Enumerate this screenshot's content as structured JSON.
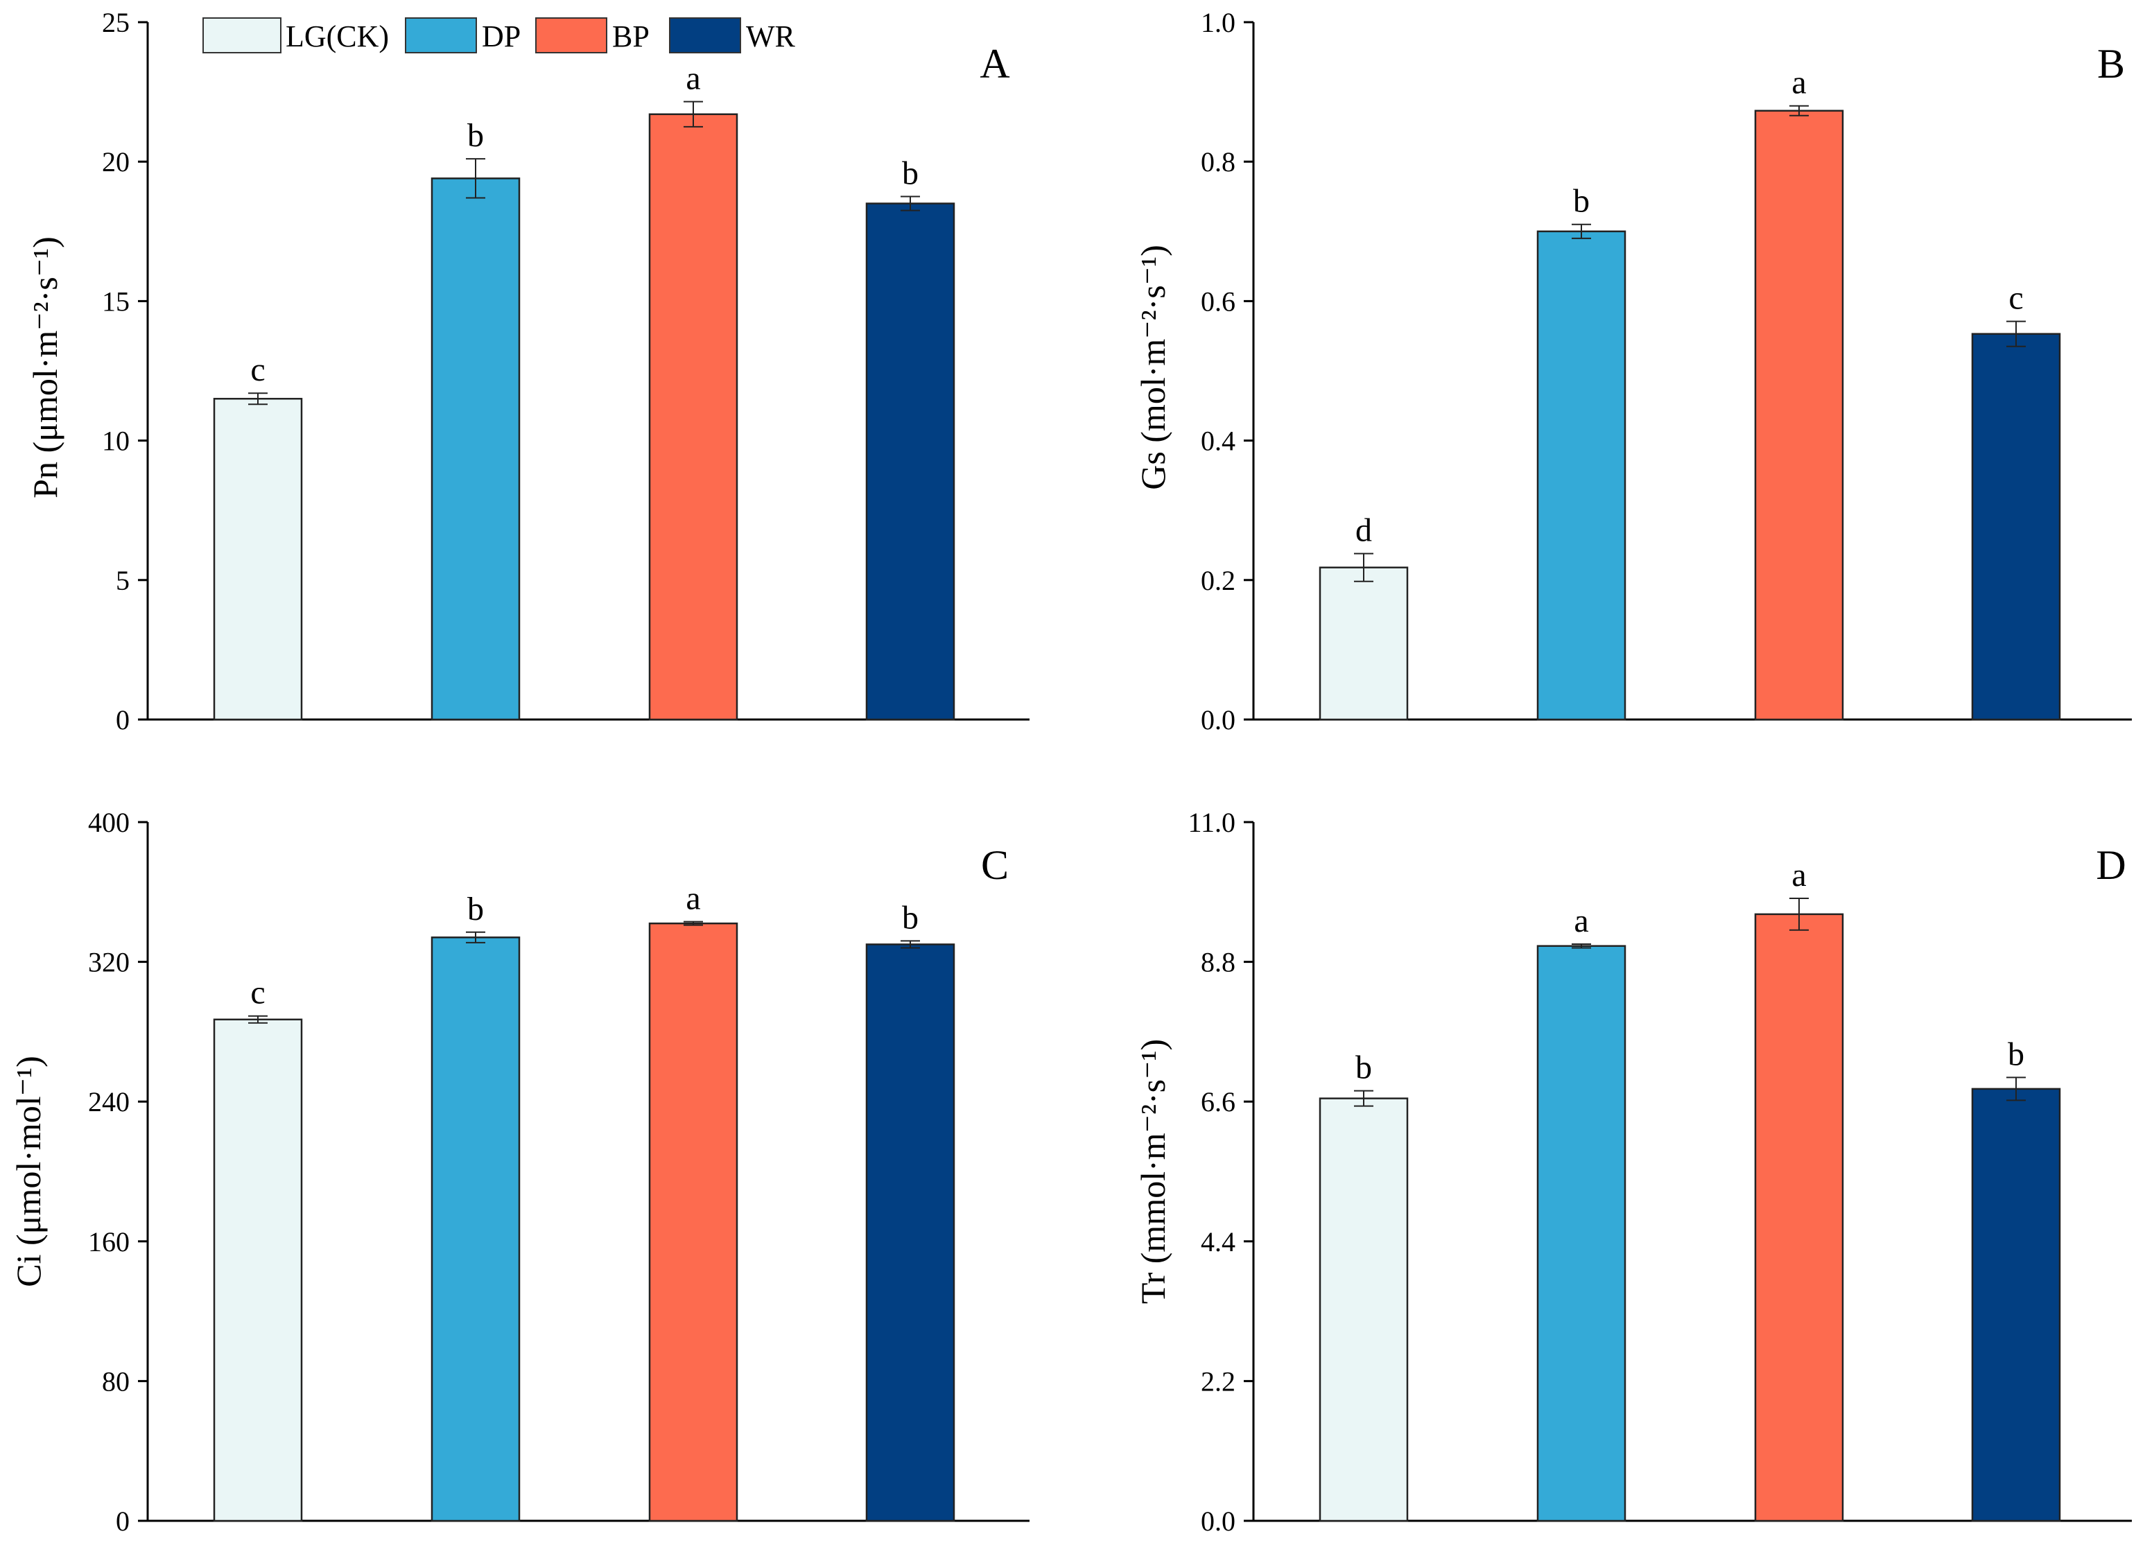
{
  "legend": [
    {
      "label": "LG(CK)",
      "color": "#eaf6f6"
    },
    {
      "label": "DP",
      "color": "#34aad7"
    },
    {
      "label": "BP",
      "color": "#fd6b4f"
    },
    {
      "label": "WR",
      "color": "#023f82"
    }
  ],
  "chart_data": [
    {
      "type": "bar",
      "panel": "A",
      "ylabel": "Pn (μmol·m⁻²·s⁻¹)",
      "categories": [
        "LG(CK)",
        "DP",
        "BP",
        "WR"
      ],
      "values": [
        11.5,
        19.4,
        21.7,
        18.5
      ],
      "errors": [
        0.2,
        0.7,
        0.45,
        0.25
      ],
      "significance": [
        "c",
        "b",
        "a",
        "b"
      ],
      "ylim": [
        0,
        25
      ],
      "yticks": [
        "0",
        "5",
        "10",
        "15",
        "20",
        "25"
      ]
    },
    {
      "type": "bar",
      "panel": "B",
      "ylabel": "Gs (mol·m⁻²·s⁻¹)",
      "categories": [
        "LG(CK)",
        "DP",
        "BP",
        "WR"
      ],
      "values": [
        0.218,
        0.7,
        0.873,
        0.553
      ],
      "errors": [
        0.02,
        0.01,
        0.007,
        0.018
      ],
      "significance": [
        "d",
        "b",
        "a",
        "c"
      ],
      "ylim": [
        0,
        1.0
      ],
      "yticks": [
        "0.0",
        "0.2",
        "0.4",
        "0.6",
        "0.8",
        "1.0"
      ]
    },
    {
      "type": "bar",
      "panel": "C",
      "ylabel": "Ci (μmol·mol⁻¹)",
      "categories": [
        "LG(CK)",
        "DP",
        "BP",
        "WR"
      ],
      "values": [
        287,
        334,
        342,
        330
      ],
      "errors": [
        2,
        3,
        1,
        2
      ],
      "significance": [
        "c",
        "b",
        "a",
        "b"
      ],
      "ylim": [
        0,
        400
      ],
      "yticks": [
        "0",
        "80",
        "160",
        "240",
        "320",
        "400"
      ]
    },
    {
      "type": "bar",
      "panel": "D",
      "ylabel": "Tr (mmol·m⁻²·s⁻¹)",
      "categories": [
        "LG(CK)",
        "DP",
        "BP",
        "WR"
      ],
      "values": [
        6.65,
        9.05,
        9.55,
        6.8
      ],
      "errors": [
        0.12,
        0.03,
        0.25,
        0.18
      ],
      "significance": [
        "b",
        "a",
        "a",
        "b"
      ],
      "ylim": [
        0,
        11.0
      ],
      "yticks": [
        "0.0",
        "2.2",
        "4.4",
        "6.6",
        "8.8",
        "11.0"
      ]
    }
  ]
}
